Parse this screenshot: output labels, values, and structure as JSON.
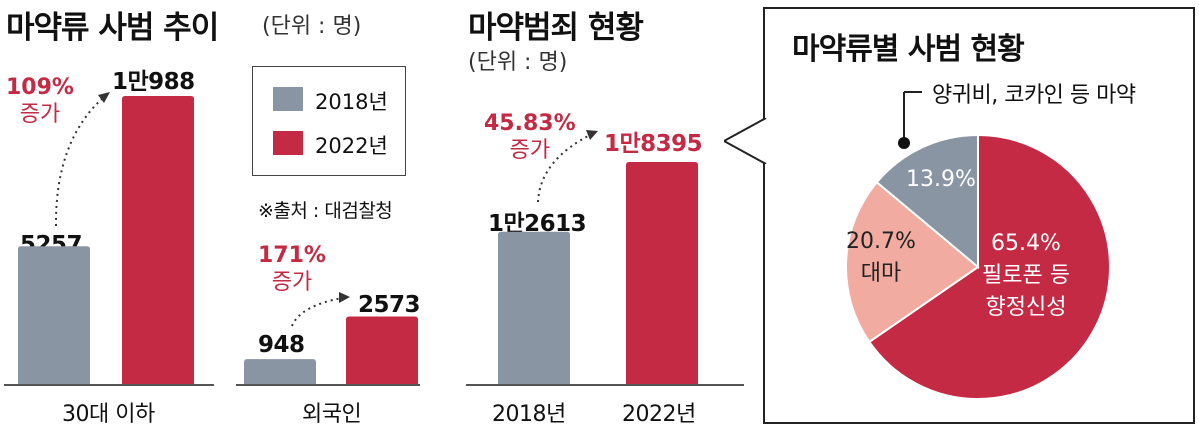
{
  "colors": {
    "y2018": "#8a95a4",
    "y2022": "#c52a45",
    "pie_gray": "#8a95a4",
    "pie_pink": "#f2aba0",
    "pie_red": "#c52a45",
    "increase_text": "#c52a45"
  },
  "left": {
    "title": "마약류 사범 추이",
    "unit": "(단위 : 명)",
    "legend": {
      "y2018": "2018년",
      "y2022": "2022년"
    },
    "source": "※출처 : 대검찰청",
    "groups": [
      {
        "label": "30대 이하",
        "v2018": "5257",
        "v2022": "1만988",
        "increase_pct": "109%",
        "increase_word": "증가"
      },
      {
        "label": "외국인",
        "v2018": "948",
        "v2022": "2573",
        "increase_pct": "171%",
        "increase_word": "증가"
      }
    ]
  },
  "middle": {
    "title": "마약범죄 현황",
    "unit": "(단위 : 명)",
    "bars": [
      {
        "label": "2018년",
        "value": "1만2613"
      },
      {
        "label": "2022년",
        "value": "1만8395"
      }
    ],
    "increase_pct": "45.83%",
    "increase_word": "증가"
  },
  "panel": {
    "title": "마약류별 사범 현황",
    "callout": "양귀비, 코카인 등 마약",
    "slices": [
      {
        "pct": "65.4%",
        "name_line1": "필로폰 등",
        "name_line2": "향정신성"
      },
      {
        "pct": "20.7%",
        "name_line1": "대마"
      },
      {
        "pct": "13.9%"
      }
    ]
  },
  "chart_data": [
    {
      "type": "bar",
      "title": "마약류 사범 추이",
      "unit": "(단위 : 명)",
      "categories": [
        "30대 이하",
        "외국인"
      ],
      "series": [
        {
          "name": "2018년",
          "values": [
            5257,
            948
          ]
        },
        {
          "name": "2022년",
          "values": [
            10988,
            2573
          ]
        }
      ],
      "annotations": [
        "109% 증가",
        "171% 증가"
      ],
      "legend": "top-right",
      "grid": false
    },
    {
      "type": "bar",
      "title": "마약범죄 현황",
      "unit": "(단위 : 명)",
      "categories": [
        "2018년",
        "2022년"
      ],
      "values": [
        12613,
        18395
      ],
      "annotations": [
        "45.83% 증가"
      ],
      "grid": false
    },
    {
      "type": "pie",
      "title": "마약류별 사범 현황",
      "labels": [
        "필로폰 등 향정신성",
        "대마",
        "양귀비, 코카인 등 마약"
      ],
      "values": [
        65.4,
        20.7,
        13.9
      ]
    }
  ]
}
